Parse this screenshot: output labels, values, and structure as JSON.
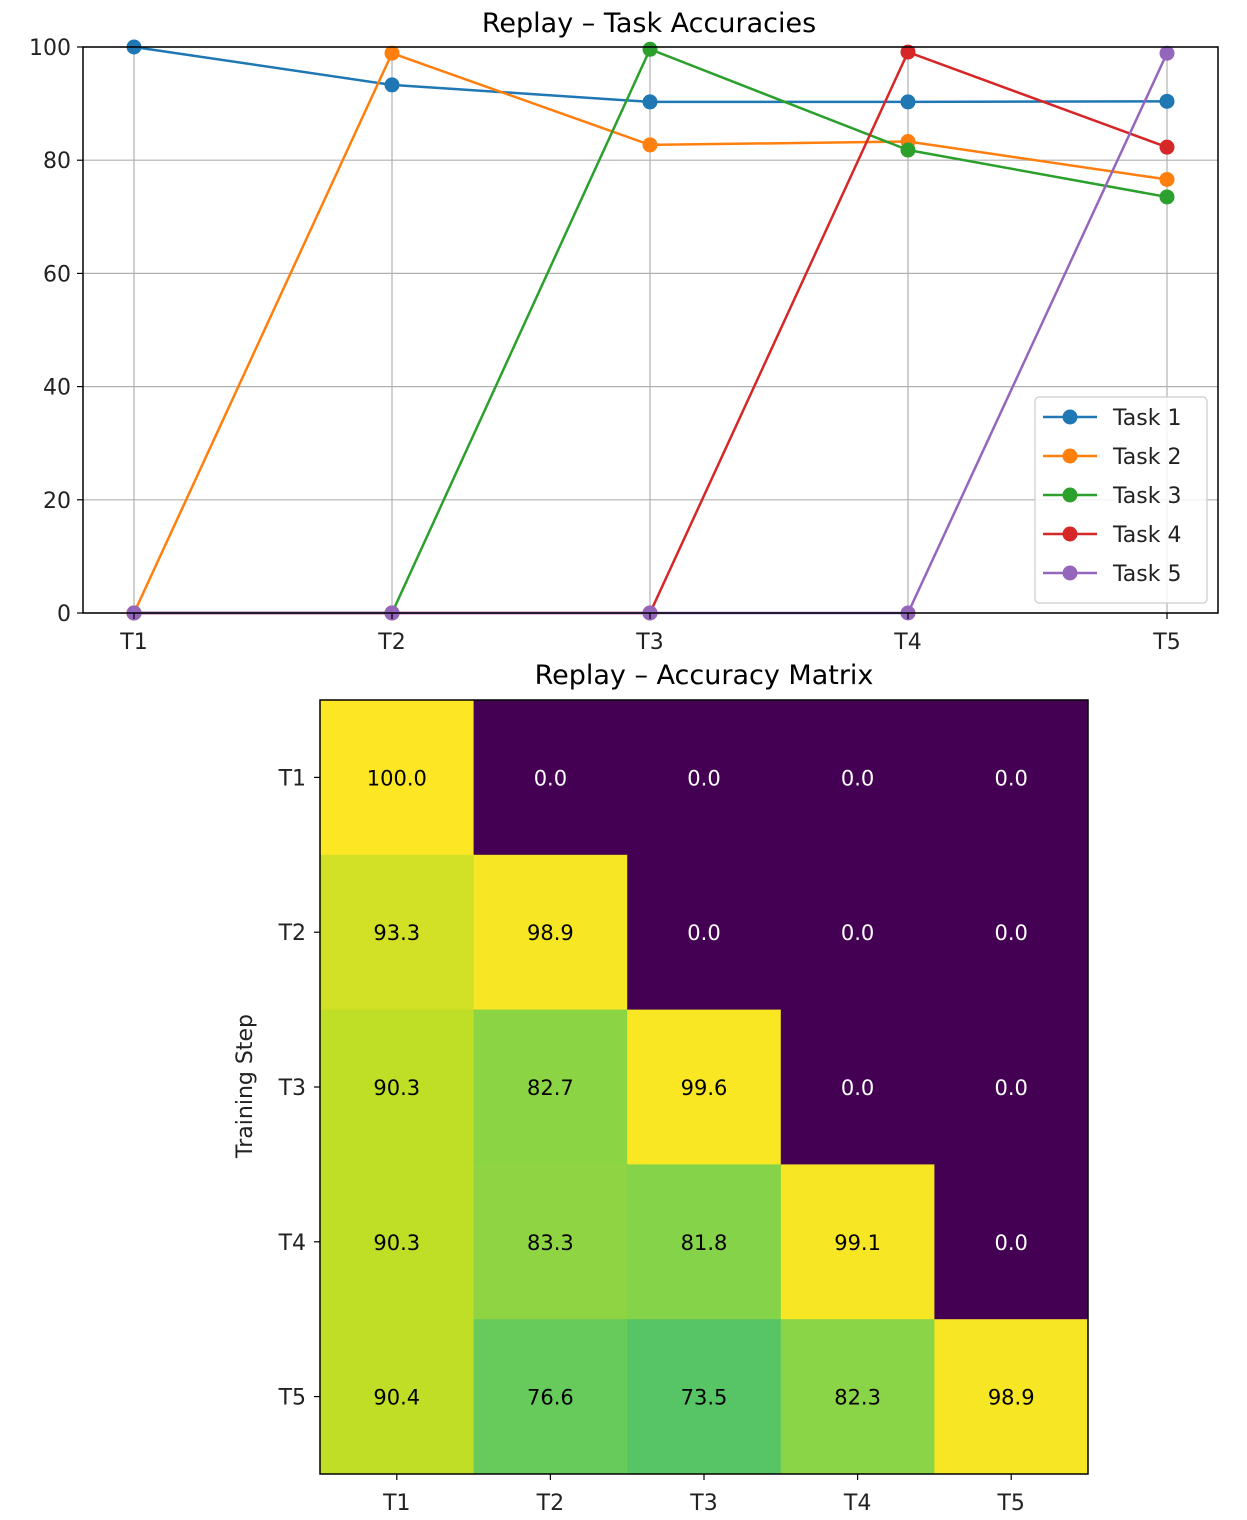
{
  "chart_data": [
    {
      "type": "line",
      "title": "Replay – Task Accuracies",
      "xlabel": "",
      "ylabel": "",
      "categories": [
        "T1",
        "T2",
        "T3",
        "T4",
        "T5"
      ],
      "ylim": [
        0,
        100
      ],
      "yticks": [
        0,
        20,
        40,
        60,
        80,
        100
      ],
      "grid": true,
      "legend_position": "lower-right",
      "series": [
        {
          "name": "Task 1",
          "color": "#1f77b4",
          "values": [
            100.0,
            93.3,
            90.3,
            90.3,
            90.4
          ]
        },
        {
          "name": "Task 2",
          "color": "#ff7f0e",
          "values": [
            0.0,
            98.9,
            82.7,
            83.3,
            76.6
          ]
        },
        {
          "name": "Task 3",
          "color": "#2ca02c",
          "values": [
            0.0,
            0.0,
            99.6,
            81.8,
            73.5
          ]
        },
        {
          "name": "Task 4",
          "color": "#d62728",
          "values": [
            0.0,
            0.0,
            0.0,
            99.1,
            82.3
          ]
        },
        {
          "name": "Task 5",
          "color": "#9467bd",
          "values": [
            0.0,
            0.0,
            0.0,
            0.0,
            98.9
          ]
        }
      ]
    },
    {
      "type": "heatmap",
      "title": "Replay – Accuracy Matrix",
      "xlabel": "",
      "ylabel": "Training Step",
      "x_categories": [
        "T1",
        "T2",
        "T3",
        "T4",
        "T5"
      ],
      "y_categories": [
        "T1",
        "T2",
        "T3",
        "T4",
        "T5"
      ],
      "colormap": "viridis",
      "vmin": 0,
      "vmax": 100,
      "values": [
        [
          100.0,
          0.0,
          0.0,
          0.0,
          0.0
        ],
        [
          93.3,
          98.9,
          0.0,
          0.0,
          0.0
        ],
        [
          90.3,
          82.7,
          99.6,
          0.0,
          0.0
        ],
        [
          90.3,
          83.3,
          81.8,
          99.1,
          0.0
        ],
        [
          90.4,
          76.6,
          73.5,
          82.3,
          98.9
        ]
      ]
    }
  ]
}
